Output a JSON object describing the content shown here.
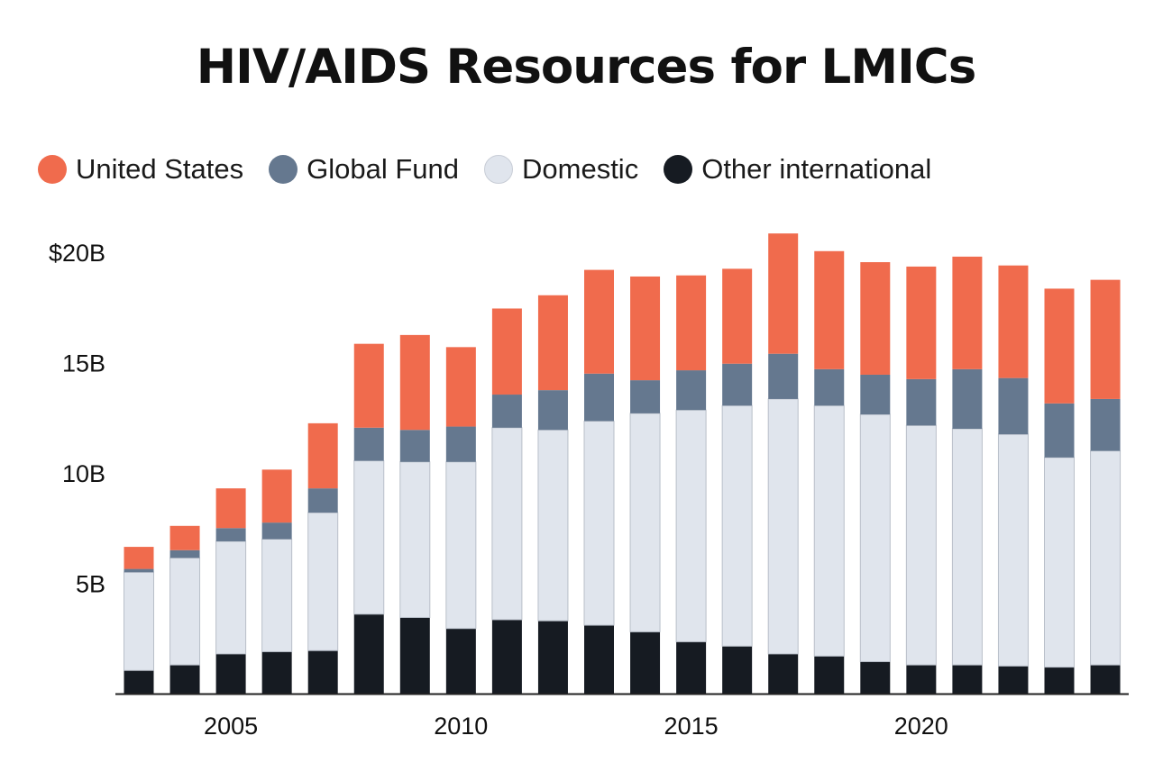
{
  "chart_data": {
    "type": "bar",
    "stacked": true,
    "title": "HIV/AIDS Resources for LMICs",
    "xlabel": "",
    "ylabel": "",
    "ylim": [
      0,
      20
    ],
    "y_ticks": [
      {
        "value": 5,
        "label": "5B"
      },
      {
        "value": 10,
        "label": "10B"
      },
      {
        "value": 15,
        "label": "15B"
      },
      {
        "value": 20,
        "label": "$20B"
      }
    ],
    "x_ticks": [
      {
        "value": 2005,
        "label": "2005"
      },
      {
        "value": 2010,
        "label": "2010"
      },
      {
        "value": 2015,
        "label": "2015"
      },
      {
        "value": 2020,
        "label": "2020"
      }
    ],
    "legend_position": "top-left",
    "grid": false,
    "years": [
      2003,
      2004,
      2005,
      2006,
      2007,
      2008,
      2009,
      2010,
      2011,
      2012,
      2013,
      2014,
      2015,
      2016,
      2017,
      2018,
      2019,
      2020,
      2021,
      2022,
      2023,
      2024
    ],
    "series": [
      {
        "name": "Other international",
        "key": "other",
        "color": "#161b22",
        "values": [
          1.05,
          1.3,
          1.8,
          1.9,
          1.95,
          3.6,
          3.45,
          2.95,
          3.35,
          3.3,
          3.1,
          2.8,
          2.35,
          2.15,
          1.8,
          1.7,
          1.45,
          1.3,
          1.3,
          1.25,
          1.2,
          1.3
        ]
      },
      {
        "name": "Domestic",
        "key": "domestic",
        "color": "#e0e5ed",
        "values": [
          4.45,
          4.85,
          5.1,
          5.1,
          6.25,
          6.95,
          7.05,
          7.55,
          8.7,
          8.65,
          9.25,
          9.9,
          10.5,
          10.9,
          11.55,
          11.35,
          11.2,
          10.85,
          10.7,
          10.5,
          9.5,
          9.7
        ]
      },
      {
        "name": "Global Fund",
        "key": "global_fund",
        "color": "#65788f",
        "values": [
          0.15,
          0.35,
          0.6,
          0.75,
          1.1,
          1.5,
          1.45,
          1.6,
          1.5,
          1.8,
          2.15,
          1.5,
          1.8,
          1.9,
          2.05,
          1.65,
          1.8,
          2.1,
          2.7,
          2.55,
          2.45,
          2.35
        ]
      },
      {
        "name": "United States",
        "key": "united_states",
        "color": "#f06b4d",
        "values": [
          1.0,
          1.1,
          1.8,
          2.4,
          2.95,
          3.8,
          4.3,
          3.6,
          3.9,
          4.3,
          4.7,
          4.7,
          4.3,
          4.3,
          5.45,
          5.35,
          5.1,
          5.1,
          5.1,
          5.1,
          5.2,
          5.4
        ]
      }
    ]
  },
  "legend_items": [
    {
      "label": "United States",
      "color": "#f06b4d",
      "key": "united_states"
    },
    {
      "label": "Global Fund",
      "color": "#65788f",
      "key": "global_fund"
    },
    {
      "label": "Domestic",
      "color": "#e0e5ed",
      "key": "domestic"
    },
    {
      "label": "Other international",
      "color": "#161b22",
      "key": "other"
    }
  ]
}
